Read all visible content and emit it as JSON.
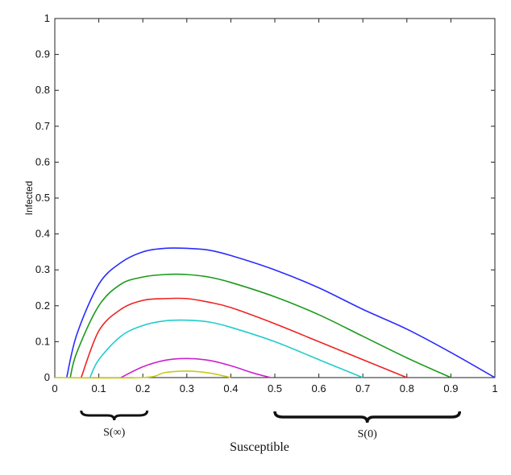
{
  "chart_data": {
    "type": "line",
    "title": "",
    "xlabel": "Susceptible",
    "ylabel": "Infected",
    "xlim": [
      0,
      1
    ],
    "ylim": [
      0,
      1
    ],
    "xticks": [
      "0",
      "0.1",
      "0.2",
      "0.3",
      "0.4",
      "0.5",
      "0.6",
      "0.7",
      "0.8",
      "0.9",
      "1"
    ],
    "yticks": [
      "0",
      "0.1",
      "0.2",
      "0.3",
      "0.4",
      "0.5",
      "0.6",
      "0.7",
      "0.8",
      "0.9",
      "1"
    ],
    "grid": false,
    "legend": "none",
    "series": [
      {
        "color": "#2a2aff",
        "x": [
          0.027,
          0.05,
          0.1,
          0.15,
          0.2,
          0.25,
          0.3,
          0.35,
          0.4,
          0.5,
          0.6,
          0.7,
          0.8,
          0.9,
          1.0
        ],
        "y": [
          0.0,
          0.12,
          0.26,
          0.32,
          0.35,
          0.36,
          0.36,
          0.355,
          0.34,
          0.3,
          0.25,
          0.19,
          0.135,
          0.07,
          0.0
        ]
      },
      {
        "color": "#1a9a1a",
        "x": [
          0.035,
          0.05,
          0.1,
          0.15,
          0.2,
          0.25,
          0.3,
          0.35,
          0.4,
          0.5,
          0.6,
          0.7,
          0.8,
          0.9
        ],
        "y": [
          0.0,
          0.07,
          0.2,
          0.26,
          0.28,
          0.287,
          0.287,
          0.28,
          0.265,
          0.225,
          0.175,
          0.115,
          0.055,
          0.0
        ]
      },
      {
        "color": "#ee2222",
        "x": [
          0.06,
          0.1,
          0.15,
          0.2,
          0.25,
          0.3,
          0.35,
          0.4,
          0.5,
          0.6,
          0.7,
          0.8
        ],
        "y": [
          0.0,
          0.13,
          0.19,
          0.215,
          0.22,
          0.22,
          0.21,
          0.195,
          0.15,
          0.1,
          0.05,
          0.0
        ]
      },
      {
        "color": "#22cccc",
        "x": [
          0.08,
          0.1,
          0.15,
          0.2,
          0.25,
          0.3,
          0.35,
          0.4,
          0.5,
          0.6,
          0.7
        ],
        "y": [
          0.0,
          0.05,
          0.115,
          0.145,
          0.158,
          0.16,
          0.155,
          0.14,
          0.1,
          0.05,
          0.0
        ]
      },
      {
        "color": "#cc22cc",
        "x": [
          0.15,
          0.2,
          0.25,
          0.3,
          0.35,
          0.4,
          0.45,
          0.49
        ],
        "y": [
          0.0,
          0.03,
          0.048,
          0.053,
          0.048,
          0.033,
          0.013,
          0.0
        ]
      },
      {
        "color": "#c8c820",
        "x": [
          0.0,
          0.2,
          0.25,
          0.3,
          0.35,
          0.4
        ],
        "y": [
          0.0,
          0.0,
          0.014,
          0.018,
          0.013,
          0.0
        ]
      }
    ],
    "annotations": [
      {
        "text": "S(∞)",
        "x_range": [
          0.06,
          0.21
        ]
      },
      {
        "text": "S(0)",
        "x_range": [
          0.5,
          0.92
        ]
      }
    ]
  }
}
